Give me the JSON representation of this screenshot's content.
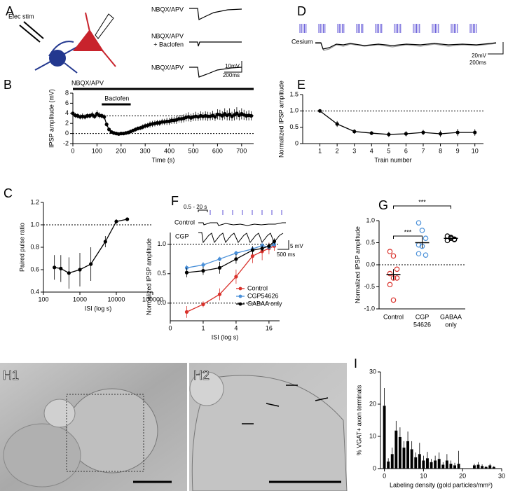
{
  "panel_letters": [
    "A",
    "B",
    "C",
    "D",
    "E",
    "F",
    "G",
    "H1",
    "H2",
    "I"
  ],
  "panel_A": {
    "stim": "Elec stim",
    "traces": [
      "NBQX/APV",
      "NBQX/APV",
      "+ Baclofen",
      "NBQX/APV"
    ],
    "scale": [
      "10mV",
      "200ms"
    ]
  },
  "panel_D": {
    "trace": "Cesium",
    "scale": [
      "20mV",
      "200ms"
    ]
  },
  "panel_F_traces": {
    "interval": "0.5 - 20 s",
    "traces": [
      "Control",
      "CGP"
    ],
    "scale": [
      "5 mV",
      "500 ms"
    ]
  },
  "chart_data": [
    {
      "type": "line",
      "xlabel": "Time (s)",
      "ylabel": "IPSP amplitude (mV)",
      "bars": [
        {
          "label": "NBQX/APV",
          "span": [
            0,
            750
          ]
        },
        {
          "label": "Baclofen",
          "span": [
            120,
            240
          ]
        }
      ],
      "xlim": [
        0,
        750
      ],
      "xticks": [
        0,
        100,
        200,
        300,
        400,
        500,
        600,
        700
      ],
      "ylim": [
        -2,
        8
      ],
      "yticks": [
        -2,
        0,
        2,
        4,
        6,
        8
      ],
      "ref_lines": [
        3.5,
        0
      ],
      "x": [
        0,
        10,
        20,
        30,
        40,
        50,
        60,
        70,
        80,
        90,
        100,
        110,
        120,
        130,
        140,
        150,
        160,
        170,
        180,
        190,
        200,
        210,
        220,
        230,
        240,
        250,
        260,
        270,
        280,
        290,
        300,
        310,
        320,
        330,
        340,
        350,
        360,
        370,
        380,
        390,
        400,
        410,
        420,
        430,
        440,
        450,
        460,
        470,
        480,
        490,
        500,
        510,
        520,
        530,
        540,
        550,
        560,
        570,
        580,
        590,
        600,
        610,
        620,
        630,
        640,
        650,
        660,
        670,
        680,
        690,
        700,
        710,
        720,
        730,
        740
      ],
      "series": [
        {
          "color": "#000000",
          "values": [
            4.0,
            3.6,
            3.5,
            3.3,
            3.4,
            3.3,
            3.5,
            3.5,
            3.7,
            3.4,
            3.9,
            3.6,
            3.5,
            3.3,
            1.8,
            0.8,
            0.3,
            0.1,
            0.0,
            -0.1,
            0.0,
            0.0,
            0.1,
            0.2,
            0.4,
            0.6,
            0.8,
            1.0,
            1.1,
            1.3,
            1.5,
            1.6,
            1.8,
            1.9,
            2.0,
            2.1,
            2.1,
            2.3,
            2.3,
            2.4,
            2.4,
            2.6,
            2.6,
            2.7,
            2.9,
            2.9,
            3.0,
            3.2,
            3.3,
            3.1,
            3.3,
            3.4,
            3.3,
            3.5,
            3.4,
            3.5,
            3.4,
            3.4,
            3.6,
            3.3,
            3.8,
            3.7,
            3.5,
            3.9,
            3.6,
            3.8,
            3.4,
            3.7,
            4.0,
            3.6,
            3.9,
            3.7,
            3.5,
            3.6,
            3.5
          ],
          "errors": [
            0.6,
            0.5,
            0.5,
            0.5,
            0.6,
            0.5,
            0.5,
            0.5,
            0.6,
            0.5,
            0.7,
            0.6,
            0.5,
            0.5,
            0.4,
            0.3,
            0.2,
            0.2,
            0.2,
            0.2,
            0.2,
            0.2,
            0.2,
            0.2,
            0.3,
            0.3,
            0.4,
            0.4,
            0.4,
            0.5,
            0.5,
            0.5,
            0.6,
            0.6,
            0.6,
            0.6,
            0.6,
            0.6,
            0.6,
            0.7,
            0.7,
            0.7,
            0.7,
            0.8,
            0.7,
            0.8,
            0.8,
            0.8,
            0.9,
            0.8,
            0.8,
            0.9,
            0.8,
            0.9,
            0.8,
            0.9,
            0.9,
            0.8,
            0.9,
            0.8,
            1.0,
            1.0,
            0.9,
            1.1,
            1.0,
            1.2,
            0.9,
            1.1,
            1.2,
            1.0,
            1.1,
            1.0,
            0.9,
            1.0,
            0.9
          ]
        }
      ]
    },
    {
      "type": "line",
      "xlabel": "ISI (log s)",
      "ylabel": "Paired pulse ratio",
      "xlog": true,
      "xlim": [
        100,
        100000
      ],
      "xticks": [
        100,
        1000,
        10000,
        100000
      ],
      "ylim": [
        0.4,
        1.2
      ],
      "yticks": [
        0.4,
        0.6,
        0.8,
        {
          "value": 1,
          "label": "1.0"
        },
        1.2
      ],
      "ref_lines": [
        1
      ],
      "x": [
        200,
        300,
        500,
        1000,
        2000,
        5000,
        10000,
        20000
      ],
      "series": [
        {
          "color": "#000000",
          "values": [
            0.62,
            0.61,
            0.57,
            0.6,
            0.65,
            0.85,
            1.03,
            1.05
          ],
          "errors": [
            0.11,
            0.12,
            0.14,
            0.15,
            0.15,
            0.05,
            0.02,
            0.01
          ]
        }
      ]
    },
    {
      "type": "line",
      "xlabel": "Train number",
      "ylabel": "Normalized IPSP amplitude",
      "xlim": [
        0,
        10.5
      ],
      "xticks": [
        1,
        2,
        3,
        4,
        5,
        6,
        7,
        8,
        9,
        10
      ],
      "ylim": [
        0,
        1.5
      ],
      "yticks": [
        0,
        0.5,
        {
          "value": 1,
          "label": "1.0"
        },
        1.5
      ],
      "ref_lines": [
        1
      ],
      "x": [
        1,
        2,
        3,
        4,
        5,
        6,
        7,
        8,
        9,
        10
      ],
      "series": [
        {
          "color": "#000000",
          "values": [
            1,
            0.6,
            0.37,
            0.32,
            0.28,
            0.3,
            0.34,
            0.3,
            0.34,
            0.34
          ],
          "errors": [
            0,
            0.09,
            0.07,
            0.06,
            0.08,
            0.08,
            0.08,
            0.1,
            0.11,
            0.1
          ]
        }
      ]
    },
    {
      "type": "line",
      "xlabel": "ISI (log s)",
      "ylabel": "Normalized IPSP amplitude",
      "xlog": true,
      "legend": "lower right",
      "xlim": [
        0.25,
        25
      ],
      "xticks": [
        {
          "value": 0.25,
          "label": "0"
        },
        1,
        4,
        16
      ],
      "ylim": [
        -0.3,
        1.2
      ],
      "yticks": [
        {
          "value": 0,
          "label": "0.0"
        },
        0.5,
        {
          "value": 1,
          "label": "1.0"
        }
      ],
      "ref_lines": [
        0,
        1
      ],
      "x": [
        0.5,
        1,
        2,
        4,
        8,
        12,
        16,
        20
      ],
      "series": [
        {
          "name": "Control",
          "color": "#d9312b",
          "values": [
            -0.15,
            -0.02,
            0.15,
            0.45,
            0.8,
            0.88,
            0.93,
            0.97
          ],
          "errors": [
            0.1,
            0.05,
            0.1,
            0.12,
            0.12,
            0.15,
            0.1,
            0.08
          ]
        },
        {
          "name": "CGP54626",
          "color": "#4a90d9",
          "values": [
            0.6,
            0.65,
            0.75,
            0.85,
            0.92,
            0.98,
            0.95,
            1.0
          ],
          "errors": [
            0.05,
            0.05,
            0.04,
            0.04,
            0.04,
            0.05,
            0.04,
            0.05
          ]
        },
        {
          "name": "GABAA only",
          "color": "#000000",
          "values": [
            0.52,
            0.55,
            0.6,
            0.75,
            0.9,
            0.93,
            0.97,
            1.05
          ],
          "errors": [
            0.08,
            0.07,
            0.1,
            0.08,
            0.07,
            0.05,
            0.05,
            0.05
          ]
        }
      ]
    },
    {
      "type": "dot",
      "ylabel": "Normalized IPSP amplitude",
      "ylim": [
        -1,
        1
      ],
      "yticks": [
        {
          "value": -1,
          "label": "-1.0"
        },
        -0.5,
        {
          "value": 0,
          "label": "0.0"
        },
        0.5,
        {
          "value": 1,
          "label": "1.0"
        }
      ],
      "ref_lines": [
        0
      ],
      "categories": [
        [
          "Control"
        ],
        [
          "CGP",
          "54626"
        ],
        [
          "GABAA",
          "only"
        ]
      ],
      "sig_labels": [
        "***",
        "***"
      ],
      "groups": [
        {
          "color": "#d9312b",
          "values": [
            0.3,
            0.2,
            -0.1,
            -0.2,
            -0.3,
            -0.3,
            -0.45,
            -0.8
          ],
          "mean": -0.22,
          "sem": 0.12
        },
        {
          "color": "#4a90d9",
          "values": [
            0.95,
            0.78,
            0.6,
            0.45,
            0.42,
            0.22,
            0.25
          ],
          "mean": 0.5,
          "sem": 0.12
        },
        {
          "color": "#000000",
          "values": [
            0.65,
            0.6,
            0.58,
            0.55,
            0.62,
            0.57
          ],
          "mean": 0.6,
          "sem": 0.04
        }
      ]
    },
    {
      "type": "bar",
      "xlabel": "Labeling density (gold particles/mm²)",
      "ylabel": "% VGAT+ axon terminals",
      "xlim": [
        -1,
        30
      ],
      "xticks": [
        0,
        10,
        20,
        30
      ],
      "ylim": [
        0,
        30
      ],
      "yticks": [
        0,
        10,
        20,
        30
      ],
      "color": "#000000",
      "x": [
        0,
        1,
        2,
        3,
        4,
        5,
        6,
        7,
        8,
        9,
        10,
        11,
        12,
        13,
        14,
        15,
        16,
        17,
        18,
        19,
        20,
        21,
        22,
        23,
        24,
        25,
        26,
        27,
        28
      ],
      "values": [
        19.5,
        2.2,
        4.5,
        11.8,
        9.8,
        6.5,
        8.5,
        6,
        3.5,
        4.5,
        2.5,
        3.2,
        2,
        2.5,
        3,
        1.2,
        2.5,
        1.5,
        1,
        1.5,
        0,
        0,
        0,
        1,
        1.2,
        0.8,
        0.5,
        1,
        0.5
      ],
      "errors": [
        5.5,
        1,
        2,
        3,
        3,
        2,
        3,
        2.5,
        1.5,
        3.5,
        1.5,
        2,
        1,
        1.5,
        2,
        0.8,
        2,
        1,
        0.8,
        4,
        0,
        0,
        0,
        0.5,
        0.8,
        0.5,
        0.3,
        0.5,
        0.3
      ]
    }
  ]
}
